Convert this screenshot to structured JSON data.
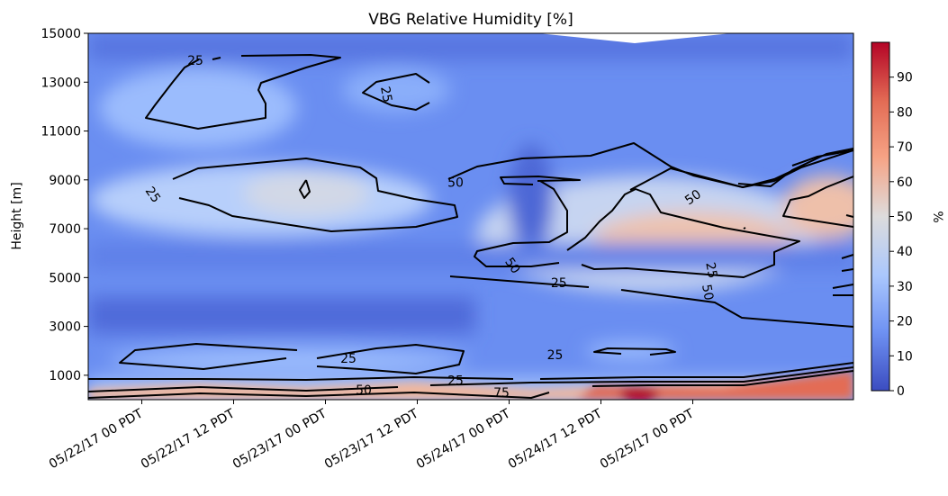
{
  "chart_data": {
    "type": "heatmap",
    "title": "VBG Relative Humidity [%]",
    "ylabel": "Height [m]",
    "xlabel": "",
    "ylim": [
      0,
      15000
    ],
    "xlim": [
      "05/21/17 17 PDT",
      "05/25/17 21 PDT"
    ],
    "grid": false,
    "y_ticks": [
      1000,
      3000,
      5000,
      7000,
      9000,
      11000,
      13000,
      15000
    ],
    "y_tick_labels": [
      "1000",
      "3000",
      "5000",
      "7000",
      "9000",
      "11000",
      "13000",
      "15000"
    ],
    "x_ticks": [
      7,
      19,
      31,
      43,
      55,
      67,
      79
    ],
    "x_tick_labels": [
      "05/22/17 00 PDT",
      "05/22/17 12 PDT",
      "05/23/17 00 PDT",
      "05/23/17 12 PDT",
      "05/24/17 00 PDT",
      "05/24/17 12 PDT",
      "05/25/17 00 PDT"
    ],
    "colorbar": {
      "label": "%",
      "min": 0,
      "max": 100,
      "ticks": [
        0,
        10,
        20,
        30,
        40,
        50,
        60,
        70,
        80,
        90
      ],
      "tick_labels": [
        "0",
        "10",
        "20",
        "30",
        "40",
        "50",
        "60",
        "70",
        "80",
        "90"
      ],
      "colormap": "coolwarm",
      "stops": [
        "#3b4cc0",
        "#6f92f3",
        "#aac7fd",
        "#dddcdc",
        "#f6a385",
        "#e36c55",
        "#b40426"
      ]
    },
    "contour_levels": [
      25,
      50,
      75
    ],
    "contour_labels": [
      {
        "text": "25",
        "x": 14,
        "y": 13900,
        "rotate": 0
      },
      {
        "text": "25",
        "x": 39,
        "y": 12500,
        "rotate": 80
      },
      {
        "text": "25",
        "x": 8.5,
        "y": 8400,
        "rotate": 55
      },
      {
        "text": "50",
        "x": 48,
        "y": 8900,
        "rotate": 0
      },
      {
        "text": "50",
        "x": 79,
        "y": 8300,
        "rotate": -35
      },
      {
        "text": "50",
        "x": 55.5,
        "y": 5500,
        "rotate": 55
      },
      {
        "text": "25",
        "x": 61.5,
        "y": 4800,
        "rotate": 0
      },
      {
        "text": "25",
        "x": 81.5,
        "y": 5300,
        "rotate": 80
      },
      {
        "text": "50",
        "x": 81,
        "y": 4400,
        "rotate": 80
      },
      {
        "text": "25",
        "x": 34,
        "y": 1700,
        "rotate": 0
      },
      {
        "text": "25",
        "x": 61,
        "y": 1850,
        "rotate": 0
      },
      {
        "text": "25",
        "x": 48,
        "y": 800,
        "rotate": 0
      },
      {
        "text": "50",
        "x": 36,
        "y": 400,
        "rotate": 0
      },
      {
        "text": "75",
        "x": 54,
        "y": 300,
        "rotate": 0
      }
    ]
  }
}
